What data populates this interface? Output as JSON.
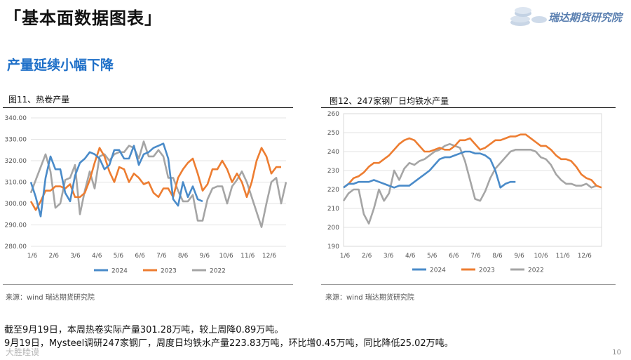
{
  "header": {
    "title": "「基本面数据图表」",
    "logo_text": "瑞达期货研究院",
    "section_title": "产量延续小幅下降"
  },
  "colors": {
    "s2024": "#4a8bc9",
    "s2023": "#ed7d31",
    "s2022": "#a5a5a5",
    "accent": "#1e6fc8"
  },
  "notes": {
    "line1": "截至9月19日，本周热卷实际产量301.28万吨，较上周降0.89万吨。",
    "line2": "9月19日，Mysteel调研247家钢厂，周度日均铁水产量223.83万吨，环比增0.45万吨，同比降低25.02万吨。"
  },
  "footer": {
    "page_number": "10",
    "watermark": "大胜睦谟"
  },
  "chart_data": [
    {
      "type": "line",
      "title": "图11、热卷产量",
      "source": "来源：wind   瑞达期货研究院",
      "ylim": [
        280,
        340
      ],
      "yticks": [
        "280.00",
        "290.00",
        "300.00",
        "310.00",
        "320.00",
        "330.00",
        "340.00"
      ],
      "ytick_values": [
        280,
        290,
        300,
        310,
        320,
        330,
        340
      ],
      "x_ticks": [
        "1/6",
        "2/6",
        "3/6",
        "4/6",
        "5/6",
        "6/6",
        "7/6",
        "8/6",
        "9/6",
        "10/6",
        "11/6",
        "12/6"
      ],
      "series": [
        {
          "name": "2024",
          "values": [
            310,
            303,
            294,
            312,
            322,
            316,
            316,
            305,
            301,
            313,
            319,
            321,
            324,
            323,
            321,
            316,
            318,
            325,
            325,
            321,
            321,
            327,
            318,
            323,
            324,
            326,
            327,
            328,
            321,
            302,
            299,
            310,
            303,
            308,
            302,
            301
          ]
        },
        {
          "name": "2023",
          "values": [
            301,
            297,
            301,
            306,
            306,
            308,
            308,
            307,
            309,
            303,
            303,
            305,
            311,
            319,
            326,
            322,
            315,
            310,
            317,
            316,
            310,
            314,
            312,
            309,
            310,
            305,
            303,
            307,
            307,
            303,
            312,
            316,
            319,
            321,
            314,
            306,
            309,
            316,
            316,
            320,
            316,
            310,
            314,
            310,
            303,
            310,
            320,
            326,
            322,
            314,
            317,
            317
          ]
        },
        {
          "name": "2022",
          "values": [
            305,
            311,
            317,
            323,
            315,
            298,
            300,
            311,
            312,
            318,
            295,
            306,
            315,
            307,
            322,
            323,
            320,
            323,
            324,
            324,
            327,
            326,
            321,
            329,
            322,
            322,
            325,
            322,
            312,
            312,
            306,
            301,
            301,
            304,
            292,
            292,
            302,
            307,
            308,
            308,
            300,
            308,
            311,
            315,
            310,
            303,
            296,
            289,
            300,
            310,
            312,
            300,
            310
          ]
        }
      ]
    },
    {
      "type": "line",
      "title": "图12、247家钢厂日均铁水产量",
      "source": "来源：wind   瑞达期货研究院",
      "ylim": [
        190,
        260
      ],
      "yticks": [
        "190",
        "200",
        "210",
        "220",
        "230",
        "240",
        "250",
        "260"
      ],
      "ytick_values": [
        190,
        200,
        210,
        220,
        230,
        240,
        250,
        260
      ],
      "x_ticks": [
        "1/6",
        "2/6",
        "3/6",
        "4/6",
        "5/6",
        "6/6",
        "7/6",
        "8/6",
        "9/6",
        "10/6",
        "11/6",
        "12/6"
      ],
      "series": [
        {
          "name": "2024",
          "values": [
            221,
            223,
            223,
            224,
            224,
            224,
            225,
            224,
            223,
            222,
            221,
            222,
            222,
            222,
            224,
            226,
            228,
            230,
            233,
            236,
            237,
            237,
            238,
            239,
            240,
            240,
            239,
            239,
            238,
            236,
            230,
            221,
            223,
            224,
            224
          ]
        },
        {
          "name": "2023",
          "values": [
            221,
            223,
            226,
            227,
            229,
            232,
            234,
            234,
            236,
            238,
            241,
            244,
            246,
            247,
            246,
            243,
            240,
            240,
            241,
            242,
            241,
            241,
            243,
            246,
            246,
            247,
            244,
            241,
            242,
            244,
            246,
            246,
            247,
            248,
            248,
            249,
            249,
            247,
            245,
            243,
            243,
            241,
            238,
            236,
            236,
            235,
            232,
            228,
            226,
            225,
            222,
            221
          ]
        },
        {
          "name": "2022",
          "values": [
            214,
            218,
            220,
            220,
            207,
            202,
            210,
            220,
            214,
            218,
            230,
            225,
            231,
            234,
            233,
            235,
            236,
            238,
            240,
            241,
            243,
            244,
            243,
            242,
            235,
            225,
            215,
            214,
            219,
            226,
            231,
            234,
            237,
            240,
            241,
            241,
            241,
            241,
            240,
            237,
            236,
            233,
            228,
            225,
            223,
            223,
            222,
            222,
            223,
            221,
            222
          ]
        }
      ]
    }
  ]
}
